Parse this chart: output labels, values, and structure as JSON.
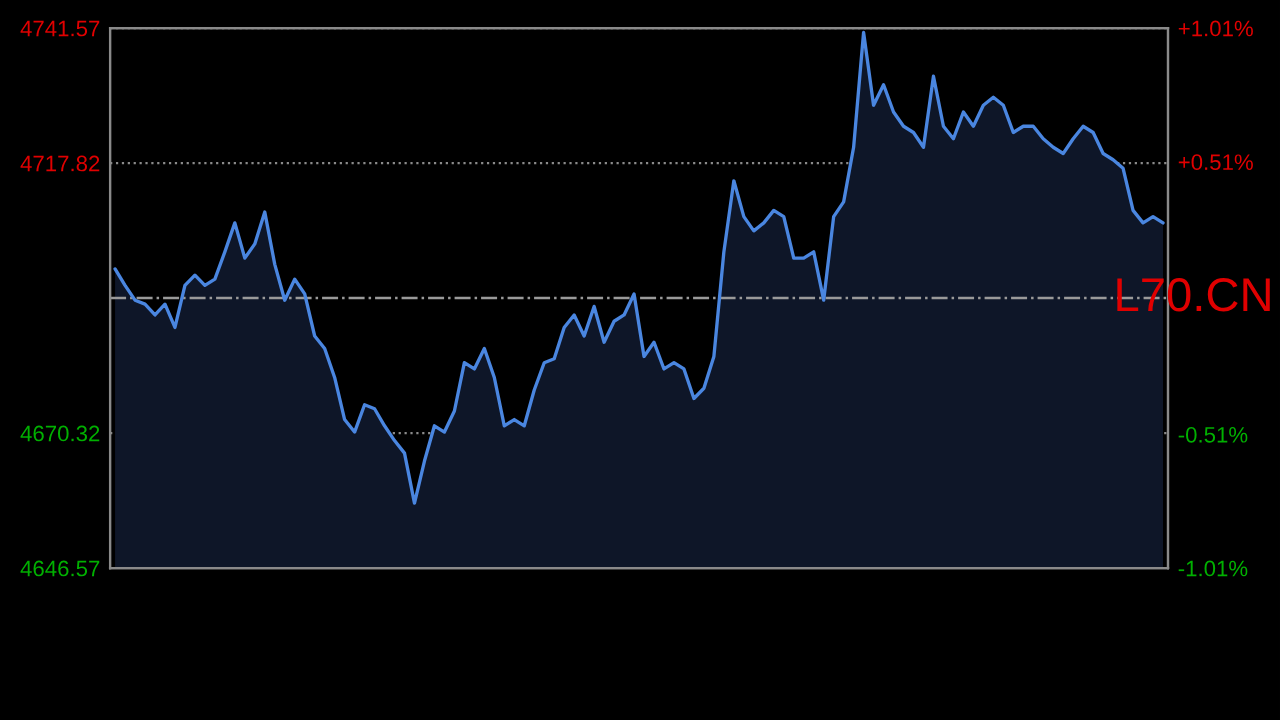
{
  "chart_data": {
    "type": "area",
    "categories": [
      null,
      null,
      null,
      null,
      null,
      null,
      null,
      null,
      null,
      null,
      null,
      null,
      null,
      null,
      null,
      null,
      null,
      null,
      null,
      null,
      null,
      null,
      null,
      null,
      null,
      null,
      null,
      null,
      null,
      null,
      null,
      null,
      null,
      null,
      null,
      null,
      null,
      null,
      null,
      null,
      null,
      null,
      null,
      null,
      null,
      null,
      null,
      null,
      null,
      null,
      null,
      null,
      null,
      null,
      null,
      null,
      null,
      null,
      null,
      null,
      null,
      null,
      null,
      null,
      null,
      null,
      null,
      null,
      null,
      null,
      null,
      null,
      null,
      null,
      null,
      null,
      null,
      null,
      null,
      null,
      null,
      null,
      null,
      null,
      null,
      null,
      null,
      null,
      null,
      null,
      null,
      null,
      null,
      null,
      null,
      null,
      null,
      null,
      null,
      null,
      null,
      null,
      null,
      null,
      null,
      null
    ],
    "series": [
      {
        "color": "#4a86e0",
        "values": [
          4699.2,
          4696.3,
          4693.7,
          4693.0,
          4691.1,
          4693.0,
          4688.9,
          4696.3,
          4698.1,
          4696.3,
          4697.4,
          4702.2,
          4707.3,
          4701.1,
          4703.6,
          4709.2,
          4700.0,
          4693.7,
          4697.4,
          4694.8,
          4687.4,
          4685.2,
          4680.1,
          4672.7,
          4670.5,
          4675.3,
          4674.6,
          4671.6,
          4669.0,
          4666.8,
          4658.0,
          4665.4,
          4671.6,
          4670.5,
          4674.2,
          4682.7,
          4681.6,
          4685.2,
          4680.1,
          4671.6,
          4672.7,
          4671.6,
          4677.9,
          4682.7,
          4683.4,
          4688.9,
          4691.1,
          4687.4,
          4692.6,
          4686.3,
          4690.0,
          4691.1,
          4694.8,
          4683.8,
          4686.3,
          4681.6,
          4682.7,
          4681.6,
          4676.4,
          4678.2,
          4683.8,
          4702.2,
          4714.7,
          4708.4,
          4705.9,
          4707.3,
          4709.5,
          4708.4,
          4701.1,
          4701.1,
          4702.2,
          4693.7,
          4708.4,
          4711.0,
          4720.6,
          4740.8,
          4728.0,
          4731.6,
          4726.8,
          4724.3,
          4723.2,
          4720.6,
          4733.1,
          4724.3,
          4722.1,
          4726.8,
          4724.3,
          4728.0,
          4729.4,
          4728.0,
          4723.2,
          4724.3,
          4724.3,
          4722.1,
          4720.6,
          4719.5,
          4722.1,
          4724.3,
          4723.2,
          4719.5,
          4718.4,
          4716.9,
          4709.5,
          4707.3,
          4708.4,
          4707.3
        ]
      }
    ],
    "ylim": [
      4646.57,
      4741.57
    ],
    "yticks": [
      4646.57,
      4670.32,
      4717.82,
      4741.57
    ],
    "y2lim": [
      -1.01,
      1.01
    ],
    "y2ticks": [
      {
        "value": -1.01,
        "label": "-1.01%"
      },
      {
        "value": -0.51,
        "label": "-0.51%"
      },
      {
        "value": 0.51,
        "label": "+0.51%"
      },
      {
        "value": 1.01,
        "label": "+1.01%"
      }
    ],
    "ref_lines": [
      {
        "axis": "y",
        "value": 4694.07,
        "color": "#9a9a9a",
        "line_style": "dashdot"
      }
    ],
    "grid": "y",
    "annotations": [
      "L70.CN"
    ]
  }
}
